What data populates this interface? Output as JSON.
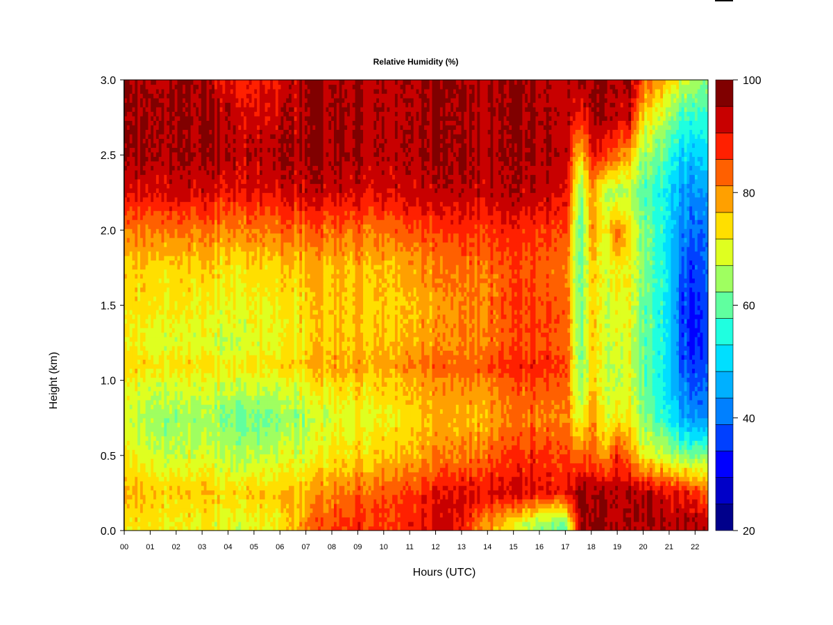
{
  "chart_data": {
    "type": "heatmap",
    "title": "Relative Humidity (%)",
    "xlabel": "Hours (UTC)",
    "ylabel": "Height (km)",
    "xlim": [
      0,
      22.5
    ],
    "ylim": [
      0.0,
      3.0
    ],
    "x_ticks": [
      "00",
      "01",
      "02",
      "03",
      "04",
      "05",
      "06",
      "07",
      "08",
      "09",
      "10",
      "11",
      "12",
      "13",
      "14",
      "15",
      "16",
      "17",
      "18",
      "19",
      "20",
      "21",
      "22"
    ],
    "y_ticks": [
      "0.0",
      "0.5",
      "1.0",
      "1.5",
      "2.0",
      "2.5",
      "3.0"
    ],
    "colorbar": {
      "min": 20,
      "max": 100,
      "step": 5,
      "tick_labels": [
        "20",
        "40",
        "60",
        "80",
        "100"
      ],
      "colors": [
        "#00008b",
        "#0000c8",
        "#0000ff",
        "#0040ff",
        "#0080ff",
        "#00b0ff",
        "#00dfff",
        "#1fffe0",
        "#60ff9f",
        "#9fff60",
        "#dfff20",
        "#ffdf00",
        "#ffa000",
        "#ff6000",
        "#ff2000",
        "#c80000",
        "#800000"
      ]
    },
    "height_axis_km": [
      0.05,
      0.25,
      0.5,
      0.75,
      1.0,
      1.1,
      1.25,
      1.5,
      1.75,
      2.0,
      2.25,
      2.5,
      2.75,
      3.0
    ],
    "time_axis_hours": [
      0,
      1,
      2,
      3,
      4,
      5,
      6,
      7,
      8,
      9,
      10,
      11,
      12,
      13,
      14,
      15,
      16,
      17,
      17.6,
      18.0,
      18.5,
      19.0,
      19.5,
      20.0,
      21.0,
      21.5,
      22.0,
      22.5
    ],
    "profiles_rh_percent": [
      [
        75,
        80,
        75,
        70,
        75,
        78,
        74,
        76,
        78,
        85,
        95,
        100,
        100,
        100
      ],
      [
        77,
        80,
        72,
        68,
        73,
        78,
        73,
        77,
        79,
        86,
        96,
        100,
        100,
        100
      ],
      [
        74,
        78,
        70,
        66,
        72,
        76,
        72,
        75,
        78,
        86,
        96,
        100,
        100,
        100
      ],
      [
        75,
        79,
        72,
        67,
        73,
        77,
        72,
        75,
        78,
        86,
        96,
        100,
        100,
        100
      ],
      [
        73,
        78,
        70,
        65,
        73,
        76,
        71,
        74,
        77,
        85,
        95,
        100,
        100,
        95
      ],
      [
        73,
        78,
        68,
        62,
        72,
        76,
        72,
        74,
        77,
        85,
        95,
        98,
        95,
        92
      ],
      [
        75,
        80,
        72,
        66,
        73,
        77,
        74,
        75,
        78,
        86,
        96,
        100,
        98,
        96
      ],
      [
        85,
        80,
        72,
        68,
        75,
        79,
        76,
        78,
        80,
        87,
        97,
        100,
        100,
        100
      ],
      [
        90,
        85,
        76,
        72,
        78,
        82,
        80,
        79,
        80,
        87,
        97,
        100,
        100,
        100
      ],
      [
        92,
        88,
        78,
        74,
        79,
        83,
        80,
        80,
        81,
        87,
        97,
        100,
        100,
        100
      ],
      [
        92,
        90,
        80,
        76,
        80,
        84,
        81,
        80,
        81,
        88,
        97,
        100,
        100,
        100
      ],
      [
        94,
        92,
        82,
        78,
        82,
        86,
        82,
        81,
        83,
        90,
        98,
        100,
        100,
        100
      ],
      [
        96,
        94,
        84,
        80,
        83,
        87,
        83,
        82,
        84,
        90,
        98,
        100,
        100,
        100
      ],
      [
        94,
        96,
        85,
        80,
        84,
        87,
        84,
        84,
        86,
        91,
        98,
        100,
        100,
        100
      ],
      [
        84,
        96,
        88,
        82,
        86,
        90,
        86,
        86,
        87,
        92,
        98,
        100,
        100,
        100
      ],
      [
        74,
        96,
        90,
        85,
        88,
        92,
        88,
        90,
        88,
        92,
        98,
        100,
        100,
        100
      ],
      [
        68,
        96,
        92,
        86,
        90,
        93,
        90,
        90,
        88,
        92,
        98,
        100,
        100,
        100
      ],
      [
        65,
        95,
        92,
        86,
        90,
        93,
        90,
        90,
        88,
        92,
        98,
        100,
        100,
        100
      ],
      [
        100,
        100,
        85,
        70,
        62,
        60,
        62,
        60,
        60,
        58,
        62,
        75,
        90,
        100
      ],
      [
        100,
        100,
        90,
        85,
        80,
        80,
        80,
        80,
        80,
        85,
        85,
        95,
        100,
        100
      ],
      [
        100,
        100,
        80,
        72,
        70,
        70,
        70,
        70,
        70,
        72,
        68,
        90,
        100,
        100
      ],
      [
        100,
        100,
        95,
        78,
        72,
        72,
        74,
        76,
        78,
        90,
        70,
        88,
        100,
        100
      ],
      [
        100,
        100,
        85,
        75,
        72,
        72,
        72,
        74,
        74,
        76,
        70,
        80,
        98,
        100
      ],
      [
        100,
        100,
        75,
        66,
        64,
        64,
        64,
        64,
        66,
        66,
        62,
        68,
        78,
        90
      ],
      [
        100,
        96,
        70,
        56,
        52,
        52,
        54,
        54,
        54,
        54,
        54,
        60,
        68,
        80
      ],
      [
        100,
        96,
        66,
        48,
        42,
        40,
        38,
        38,
        40,
        44,
        46,
        52,
        60,
        72
      ],
      [
        100,
        92,
        64,
        44,
        38,
        36,
        34,
        34,
        36,
        40,
        44,
        50,
        58,
        68
      ],
      [
        100,
        88,
        68,
        46,
        42,
        40,
        38,
        40,
        42,
        44,
        48,
        54,
        60,
        66
      ]
    ]
  }
}
